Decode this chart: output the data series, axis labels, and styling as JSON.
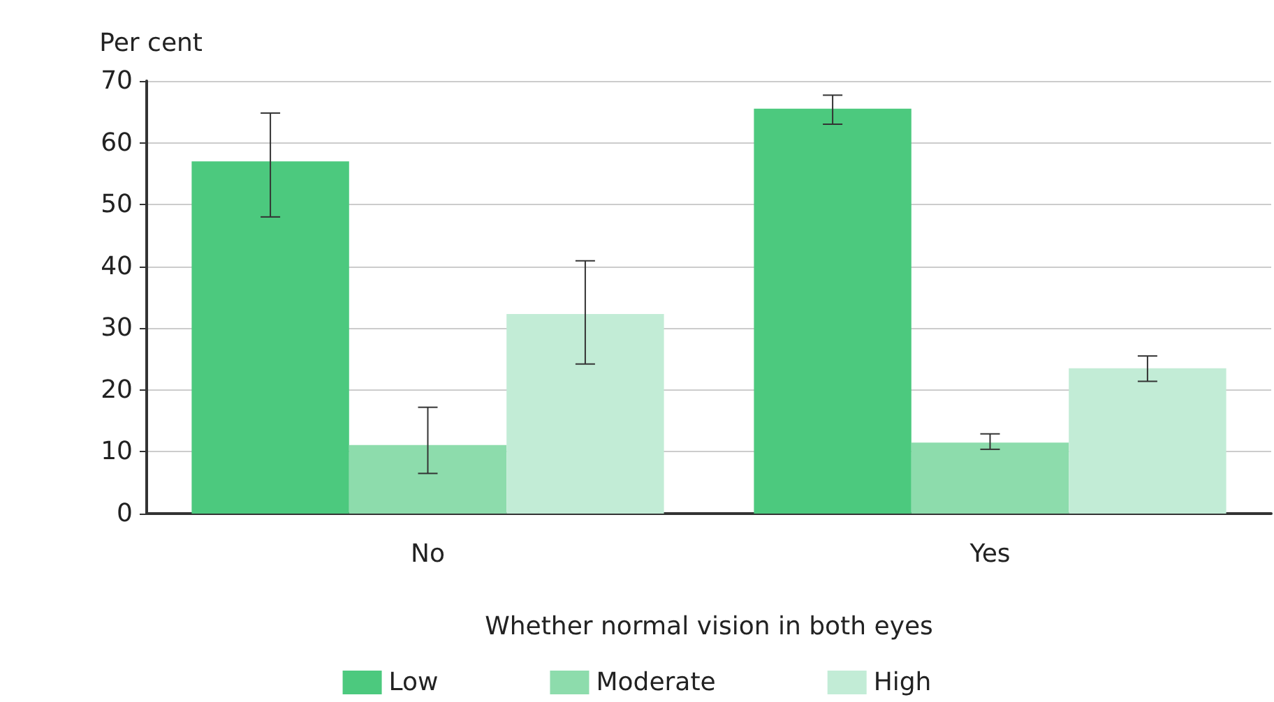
{
  "chart_data": {
    "type": "bar",
    "ylabel": "Per cent",
    "xlabel": "Whether normal vision in both eyes",
    "categories": [
      "No",
      "Yes"
    ],
    "series": [
      {
        "name": "Low",
        "color": "#4cc97e",
        "values": [
          57,
          65.5
        ],
        "errors": [
          [
            48,
            64.8
          ],
          [
            63,
            67.7
          ]
        ]
      },
      {
        "name": "Moderate",
        "color": "#8ddcac",
        "values": [
          11.1,
          11.5
        ],
        "errors": [
          [
            6.5,
            17.2
          ],
          [
            10.4,
            12.9
          ]
        ]
      },
      {
        "name": "High",
        "color": "#c2ecd6",
        "values": [
          32.3,
          23.5
        ],
        "errors": [
          [
            24.2,
            40.9
          ],
          [
            21.4,
            25.5
          ]
        ]
      }
    ],
    "ylim": [
      0,
      70
    ],
    "yticks": [
      0,
      10,
      20,
      30,
      40,
      50,
      60,
      70
    ],
    "grid": "y",
    "legend": "bottom"
  }
}
